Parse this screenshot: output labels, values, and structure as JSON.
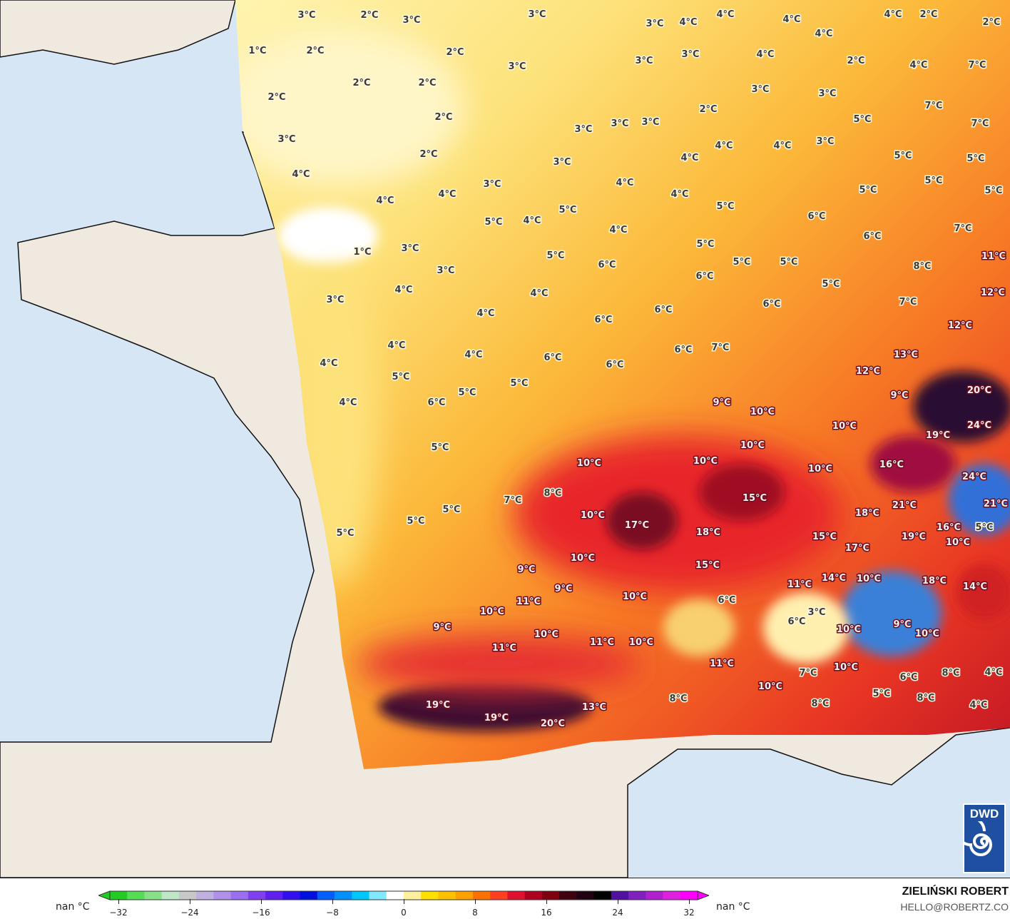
{
  "map": {
    "colors": {
      "sea": "#d7e6f5",
      "land": "#efe9df",
      "coast": "#111111"
    },
    "temperature_labels": [
      "1°C",
      "2°C",
      "2°C",
      "3°C",
      "2°C",
      "3°C",
      "3°C",
      "2°C",
      "2°C",
      "2°C",
      "3°C",
      "2°C",
      "2°C",
      "3°C",
      "4°C",
      "3°C",
      "3°C",
      "3°C",
      "3°C",
      "3°C",
      "3°C",
      "3°C",
      "4°C",
      "4°C",
      "4°C",
      "4°C",
      "4°C",
      "4°C",
      "2°C",
      "2°C",
      "2°C",
      "4°C",
      "7°C",
      "3°C",
      "3°C",
      "2°C",
      "7°C",
      "5°C",
      "7°C",
      "4°C",
      "4°C",
      "3°C",
      "4°C",
      "5°C",
      "5°C",
      "4°C",
      "4°C",
      "3°C",
      "4°C",
      "4°C",
      "5°C",
      "5°C",
      "5°C",
      "5°C",
      "4°C",
      "5°C",
      "5°C",
      "6°C",
      "4°C",
      "1°C",
      "3°C",
      "3°C",
      "5°C",
      "6°C",
      "5°C",
      "5°C",
      "5°C",
      "6°C",
      "6°C",
      "7°C",
      "11°C",
      "8°C",
      "5°C",
      "4°C",
      "3°C",
      "4°C",
      "4°C",
      "6°C",
      "6°C",
      "6°C",
      "7°C",
      "12°C",
      "12°C",
      "4°C",
      "4°C",
      "4°C",
      "6°C",
      "6°C",
      "6°C",
      "7°C",
      "13°C",
      "12°C",
      "5°C",
      "5°C",
      "5°C",
      "4°C",
      "6°C",
      "9°C",
      "10°C",
      "9°C",
      "20°C",
      "10°C",
      "19°C",
      "24°C",
      "5°C",
      "10°C",
      "10°C",
      "10°C",
      "10°C",
      "16°C",
      "24°C",
      "7°C",
      "8°C",
      "15°C",
      "5°C",
      "10°C",
      "17°C",
      "18°C",
      "18°C",
      "21°C",
      "21°C",
      "5°C",
      "5°C",
      "15°C",
      "19°C",
      "16°C",
      "5°C",
      "10°C",
      "17°C",
      "10°C",
      "15°C",
      "9°C",
      "9°C",
      "11°C",
      "14°C",
      "10°C",
      "18°C",
      "14°C",
      "10°C",
      "6°C",
      "11°C",
      "10°C",
      "3°C",
      "6°C",
      "10°C",
      "9°C",
      "10°C",
      "9°C",
      "10°C",
      "11°C",
      "11°C",
      "10°C",
      "11°C",
      "7°C",
      "10°C",
      "6°C",
      "8°C",
      "4°C",
      "10°C",
      "5°C",
      "8°C",
      "8°C",
      "8°C",
      "4°C",
      "19°C",
      "19°C",
      "20°C",
      "13°C"
    ]
  },
  "legend": {
    "left_label": "nan °C",
    "right_label": "nan °C",
    "ticks": [
      "−32",
      "−24",
      "−16",
      "−8",
      "0",
      "8",
      "16",
      "24",
      "32"
    ],
    "range": [
      -32,
      32
    ],
    "colors": [
      "#22cc22",
      "#55dd55",
      "#88e088",
      "#bfe6c6",
      "#c8c8c8",
      "#c0b0e0",
      "#b090e8",
      "#9a70f0",
      "#8040f0",
      "#6020f0",
      "#3010f0",
      "#0010e0",
      "#0060ff",
      "#0090ff",
      "#00c8ff",
      "#80e8ff",
      "#ffffff",
      "#fff0a0",
      "#ffe000",
      "#ffc000",
      "#ffa000",
      "#ff7000",
      "#ff4020",
      "#e01030",
      "#b00020",
      "#800010",
      "#400010",
      "#200010",
      "#000000",
      "#5010a0",
      "#8020c0",
      "#b020d0",
      "#e020e0",
      "#ff00ff"
    ]
  },
  "credit": {
    "name": "ZIELIŃSKI ROBERT",
    "email": "HELLO@ROBERTZ.CO"
  },
  "logo": {
    "text": "DWD"
  }
}
